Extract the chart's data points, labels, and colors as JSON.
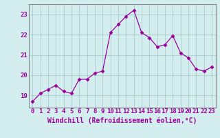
{
  "x": [
    0,
    1,
    2,
    3,
    4,
    5,
    6,
    7,
    8,
    9,
    10,
    11,
    12,
    13,
    14,
    15,
    16,
    17,
    18,
    19,
    20,
    21,
    22,
    23
  ],
  "y": [
    18.7,
    19.1,
    19.3,
    19.5,
    19.2,
    19.1,
    19.8,
    19.8,
    20.1,
    20.2,
    22.1,
    22.5,
    22.9,
    23.2,
    22.1,
    21.85,
    21.4,
    21.5,
    21.95,
    21.1,
    20.85,
    20.3,
    20.2,
    20.4
  ],
  "line_color": "#990099",
  "marker": "D",
  "marker_size": 2.5,
  "bg_color": "#d4eef0",
  "grid_color": "#aacccc",
  "xlabel": "Windchill (Refroidissement éolien,°C)",
  "xlabel_fontsize": 7,
  "tick_fontsize": 6.5,
  "ylim": [
    18.4,
    23.5
  ],
  "xlim": [
    -0.5,
    23.5
  ],
  "yticks": [
    19,
    20,
    21,
    22,
    23
  ],
  "xticks": [
    0,
    1,
    2,
    3,
    4,
    5,
    6,
    7,
    8,
    9,
    10,
    11,
    12,
    13,
    14,
    15,
    16,
    17,
    18,
    19,
    20,
    21,
    22,
    23
  ],
  "spine_color": "#888888",
  "axis_color": "#660066"
}
